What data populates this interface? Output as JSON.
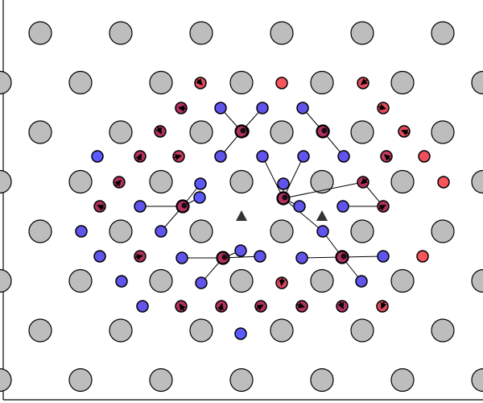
{
  "colors": {
    "background": "#ffffff",
    "frame": "#000000",
    "lattice_fill": "#bdbdbd",
    "atom_outline": "#000000",
    "red_end": "#ff5a5a",
    "blue_end": "#5a5aff",
    "arrow": "#000000",
    "marker": "#333333"
  },
  "legend_note": "",
  "lattice_sites": [
    {
      "col": 0,
      "row": 0
    },
    {
      "col": 2,
      "row": 0
    },
    {
      "col": 4,
      "row": 0
    },
    {
      "col": 6,
      "row": 0
    },
    {
      "col": 8,
      "row": 0
    },
    {
      "col": 10,
      "row": 0
    },
    {
      "col": -1,
      "row": 1
    },
    {
      "col": 1,
      "row": 1
    },
    {
      "col": 3,
      "row": 1
    },
    {
      "col": 5,
      "row": 1
    },
    {
      "col": 7,
      "row": 1
    },
    {
      "col": 9,
      "row": 1
    },
    {
      "col": 11,
      "row": 1
    },
    {
      "col": 0,
      "row": 2
    },
    {
      "col": 2,
      "row": 2
    },
    {
      "col": 4,
      "row": 2
    },
    {
      "col": 6,
      "row": 2
    },
    {
      "col": 8,
      "row": 2
    },
    {
      "col": 10,
      "row": 2
    },
    {
      "col": -1,
      "row": 3
    },
    {
      "col": 1,
      "row": 3
    },
    {
      "col": 3,
      "row": 3
    },
    {
      "col": 5,
      "row": 3
    },
    {
      "col": 7,
      "row": 3
    },
    {
      "col": 9,
      "row": 3
    },
    {
      "col": 11,
      "row": 3
    },
    {
      "col": 0,
      "row": 4
    },
    {
      "col": 2,
      "row": 4
    },
    {
      "col": 4,
      "row": 4
    },
    {
      "col": 6,
      "row": 4
    },
    {
      "col": 8,
      "row": 4
    },
    {
      "col": 10,
      "row": 4
    },
    {
      "col": -1,
      "row": 5
    },
    {
      "col": 1,
      "row": 5
    },
    {
      "col": 3,
      "row": 5
    },
    {
      "col": 5,
      "row": 5
    },
    {
      "col": 7,
      "row": 5
    },
    {
      "col": 9,
      "row": 5
    },
    {
      "col": 11,
      "row": 5
    },
    {
      "col": 0,
      "row": 6
    },
    {
      "col": 2,
      "row": 6
    },
    {
      "col": 4,
      "row": 6
    },
    {
      "col": 6,
      "row": 6
    },
    {
      "col": 8,
      "row": 6
    },
    {
      "col": 10,
      "row": 6
    },
    {
      "col": -1,
      "row": 7
    },
    {
      "col": 1,
      "row": 7
    },
    {
      "col": 3,
      "row": 7
    },
    {
      "col": 5,
      "row": 7
    },
    {
      "col": 7,
      "row": 7
    },
    {
      "col": 9,
      "row": 7
    },
    {
      "col": 11,
      "row": 7
    }
  ],
  "small_atoms": [
    {
      "id": "a1",
      "t": 0.85
    },
    {
      "id": "a2",
      "t": 0.95
    },
    {
      "id": "a3",
      "t": 0.85
    },
    {
      "id": "a4",
      "t": 0.55
    },
    {
      "id": "a5",
      "t": 0.1
    },
    {
      "id": "a6",
      "t": 0.1
    },
    {
      "id": "a7",
      "t": 0.1
    },
    {
      "id": "a8",
      "t": 0.85
    },
    {
      "id": "a9",
      "t": 0.55
    },
    {
      "id": "a10",
      "t": 0.55
    },
    {
      "id": "a11",
      "t": 0.55
    },
    {
      "id": "a12",
      "t": 0.85
    },
    {
      "id": "a13",
      "t": 0.0
    },
    {
      "id": "a14",
      "t": 0.55
    },
    {
      "id": "a15",
      "t": 0.7
    },
    {
      "id": "a16",
      "t": 0.1
    },
    {
      "id": "a17",
      "t": 0.1
    },
    {
      "id": "a18",
      "t": 0.1
    },
    {
      "id": "a19",
      "t": 0.1
    },
    {
      "id": "a20",
      "t": 0.7
    },
    {
      "id": "a21",
      "t": 0.9
    },
    {
      "id": "a22",
      "t": 0.55
    },
    {
      "id": "a23",
      "t": 0.05
    },
    {
      "id": "a24",
      "t": 0.1
    },
    {
      "id": "a25",
      "t": 0.0
    },
    {
      "id": "a26",
      "t": 0.6
    },
    {
      "id": "a27",
      "t": 0.1
    },
    {
      "id": "a28",
      "t": 0.1
    },
    {
      "id": "a29",
      "t": 0.1
    },
    {
      "id": "a30",
      "t": 0.55
    },
    {
      "id": "a31",
      "t": 0.95
    },
    {
      "id": "a32",
      "t": 0.1
    },
    {
      "id": "a33",
      "t": 0.1
    },
    {
      "id": "a34",
      "t": 0.1
    },
    {
      "id": "a35",
      "t": 0.55
    },
    {
      "id": "a36",
      "t": 0.1
    },
    {
      "id": "a37",
      "t": 0.1
    },
    {
      "id": "a38",
      "t": 0.55
    },
    {
      "id": "a39",
      "t": 0.1
    },
    {
      "id": "a40",
      "t": 0.1
    },
    {
      "id": "a41",
      "t": 0.1
    },
    {
      "id": "a42",
      "t": 0.1
    },
    {
      "id": "a43",
      "t": 0.55
    },
    {
      "id": "a44",
      "t": 0.1
    },
    {
      "id": "a45",
      "t": 0.95
    },
    {
      "id": "a46",
      "t": 0.1
    },
    {
      "id": "a47",
      "t": 0.1
    },
    {
      "id": "a48",
      "t": 0.8
    },
    {
      "id": "a49",
      "t": 0.1
    },
    {
      "id": "a50",
      "t": 0.1
    },
    {
      "id": "a51",
      "t": 0.55
    },
    {
      "id": "a52",
      "t": 0.55
    },
    {
      "id": "a53",
      "t": 0.55
    },
    {
      "id": "a54",
      "t": 0.55
    },
    {
      "id": "a55",
      "t": 0.55
    },
    {
      "id": "a56",
      "t": 0.85
    },
    {
      "id": "a57",
      "t": 0.0
    }
  ],
  "hub_atoms": [
    {
      "id": "h1",
      "t": 0.55
    },
    {
      "id": "h2",
      "t": 0.55
    },
    {
      "id": "h3",
      "t": 0.55
    },
    {
      "id": "h4",
      "t": 0.55
    },
    {
      "id": "h5",
      "t": 0.55
    },
    {
      "id": "h6",
      "t": 0.55
    }
  ],
  "triangles": [
    {
      "id": "t1"
    },
    {
      "id": "t2"
    }
  ]
}
